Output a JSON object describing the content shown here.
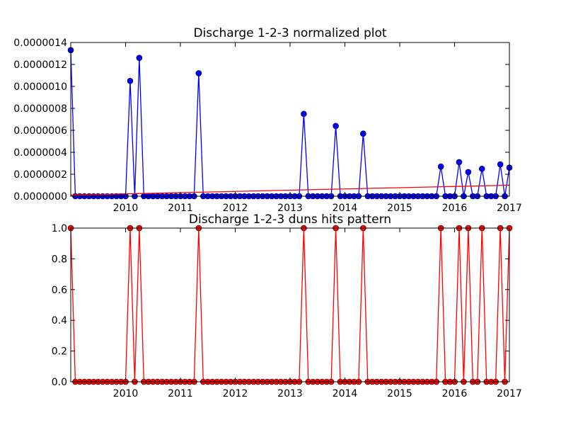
{
  "chart_data": [
    {
      "type": "line",
      "title": "Discharge 1-2-3 normalized plot",
      "xlabel": "",
      "ylabel": "",
      "xlim": [
        "2009-01",
        "2017-01"
      ],
      "ylim": [
        0,
        1.4e-06
      ],
      "grid": false,
      "x_tick_labels": [
        "2010",
        "2011",
        "2012",
        "2013",
        "2014",
        "2015",
        "2016",
        "2017"
      ],
      "y_tick_labels": [
        "0.0000000",
        "0.0000002",
        "0.0000004",
        "0.0000006",
        "0.0000008",
        "0.0000010",
        "0.0000012",
        "0.0000014"
      ],
      "series": [
        {
          "color": "#0000ff",
          "marker": "circle",
          "x": [
            "2009-01",
            "2009-02",
            "2009-03",
            "2009-04",
            "2009-05",
            "2009-06",
            "2009-07",
            "2009-08",
            "2009-09",
            "2009-10",
            "2009-11",
            "2009-12",
            "2010-01",
            "2010-02",
            "2010-03",
            "2010-04",
            "2010-05",
            "2010-06",
            "2010-07",
            "2010-08",
            "2010-09",
            "2010-10",
            "2010-11",
            "2010-12",
            "2011-01",
            "2011-02",
            "2011-03",
            "2011-04",
            "2011-05",
            "2011-06",
            "2011-07",
            "2011-08",
            "2011-09",
            "2011-10",
            "2011-11",
            "2011-12",
            "2012-01",
            "2012-02",
            "2012-03",
            "2012-04",
            "2012-05",
            "2012-06",
            "2012-07",
            "2012-08",
            "2012-09",
            "2012-10",
            "2012-11",
            "2012-12",
            "2013-01",
            "2013-02",
            "2013-03",
            "2013-04",
            "2013-05",
            "2013-06",
            "2013-07",
            "2013-08",
            "2013-09",
            "2013-10",
            "2013-11",
            "2013-12",
            "2014-01",
            "2014-02",
            "2014-03",
            "2014-04",
            "2014-05",
            "2014-06",
            "2014-07",
            "2014-08",
            "2014-09",
            "2014-10",
            "2014-11",
            "2014-12",
            "2015-01",
            "2015-02",
            "2015-03",
            "2015-04",
            "2015-05",
            "2015-06",
            "2015-07",
            "2015-08",
            "2015-09",
            "2015-10",
            "2015-11",
            "2015-12",
            "2016-01",
            "2016-02",
            "2016-03",
            "2016-04",
            "2016-05",
            "2016-06",
            "2016-07",
            "2016-08",
            "2016-09",
            "2016-10",
            "2016-11",
            "2016-12",
            "2017-01"
          ],
          "y": [
            1.33e-06,
            0,
            0,
            0,
            0,
            0,
            0,
            0,
            0,
            0,
            0,
            0,
            0,
            1.05e-06,
            0,
            1.26e-06,
            0,
            0,
            0,
            0,
            0,
            0,
            0,
            0,
            0,
            0,
            0,
            0,
            1.12e-06,
            0,
            0,
            0,
            0,
            0,
            0,
            0,
            0,
            0,
            0,
            0,
            0,
            0,
            0,
            0,
            0,
            0,
            0,
            0,
            0,
            0,
            0,
            7.5e-07,
            0,
            0,
            0,
            0,
            0,
            0,
            6.4e-07,
            0,
            0,
            0,
            0,
            0,
            5.7e-07,
            0,
            0,
            0,
            0,
            0,
            0,
            0,
            0,
            0,
            0,
            0,
            0,
            0,
            0,
            0,
            0,
            2.7e-07,
            0,
            0,
            0,
            3.1e-07,
            0,
            2.2e-07,
            0,
            0,
            2.5e-07,
            0,
            0,
            0,
            2.9e-07,
            0,
            2.6e-07
          ]
        },
        {
          "color": "#ff0000",
          "marker": "none",
          "x": [
            "2009-01",
            "2017-01"
          ],
          "y": [
            1e-08,
            1e-07
          ]
        }
      ]
    },
    {
      "type": "line",
      "title": "Discharge 1-2-3 duns hits pattern",
      "xlabel": "",
      "ylabel": "",
      "xlim": [
        "2009-01",
        "2017-01"
      ],
      "ylim": [
        0,
        1.0
      ],
      "grid": false,
      "x_tick_labels": [
        "2010",
        "2011",
        "2012",
        "2013",
        "2014",
        "2015",
        "2016",
        "2017"
      ],
      "y_tick_labels": [
        "0.0",
        "0.2",
        "0.4",
        "0.6",
        "0.8",
        "1.0"
      ],
      "series": [
        {
          "color": "#ff0000",
          "marker": "circle",
          "x": [
            "2009-01",
            "2009-02",
            "2009-03",
            "2009-04",
            "2009-05",
            "2009-06",
            "2009-07",
            "2009-08",
            "2009-09",
            "2009-10",
            "2009-11",
            "2009-12",
            "2010-01",
            "2010-02",
            "2010-03",
            "2010-04",
            "2010-05",
            "2010-06",
            "2010-07",
            "2010-08",
            "2010-09",
            "2010-10",
            "2010-11",
            "2010-12",
            "2011-01",
            "2011-02",
            "2011-03",
            "2011-04",
            "2011-05",
            "2011-06",
            "2011-07",
            "2011-08",
            "2011-09",
            "2011-10",
            "2011-11",
            "2011-12",
            "2012-01",
            "2012-02",
            "2012-03",
            "2012-04",
            "2012-05",
            "2012-06",
            "2012-07",
            "2012-08",
            "2012-09",
            "2012-10",
            "2012-11",
            "2012-12",
            "2013-01",
            "2013-02",
            "2013-03",
            "2013-04",
            "2013-05",
            "2013-06",
            "2013-07",
            "2013-08",
            "2013-09",
            "2013-10",
            "2013-11",
            "2013-12",
            "2014-01",
            "2014-02",
            "2014-03",
            "2014-04",
            "2014-05",
            "2014-06",
            "2014-07",
            "2014-08",
            "2014-09",
            "2014-10",
            "2014-11",
            "2014-12",
            "2015-01",
            "2015-02",
            "2015-03",
            "2015-04",
            "2015-05",
            "2015-06",
            "2015-07",
            "2015-08",
            "2015-09",
            "2015-10",
            "2015-11",
            "2015-12",
            "2016-01",
            "2016-02",
            "2016-03",
            "2016-04",
            "2016-05",
            "2016-06",
            "2016-07",
            "2016-08",
            "2016-09",
            "2016-10",
            "2016-11",
            "2016-12",
            "2017-01"
          ],
          "y": [
            1,
            0,
            0,
            0,
            0,
            0,
            0,
            0,
            0,
            0,
            0,
            0,
            0,
            1,
            0,
            1,
            0,
            0,
            0,
            0,
            0,
            0,
            0,
            0,
            0,
            0,
            0,
            0,
            1,
            0,
            0,
            0,
            0,
            0,
            0,
            0,
            0,
            0,
            0,
            0,
            0,
            0,
            0,
            0,
            0,
            0,
            0,
            0,
            0,
            0,
            0,
            1,
            0,
            0,
            0,
            0,
            0,
            0,
            1,
            0,
            0,
            0,
            0,
            0,
            1,
            0,
            0,
            0,
            0,
            0,
            0,
            0,
            0,
            0,
            0,
            0,
            0,
            0,
            0,
            0,
            0,
            1,
            0,
            0,
            0,
            1,
            0,
            1,
            0,
            0,
            1,
            0,
            0,
            0,
            1,
            0,
            1
          ]
        }
      ]
    }
  ]
}
